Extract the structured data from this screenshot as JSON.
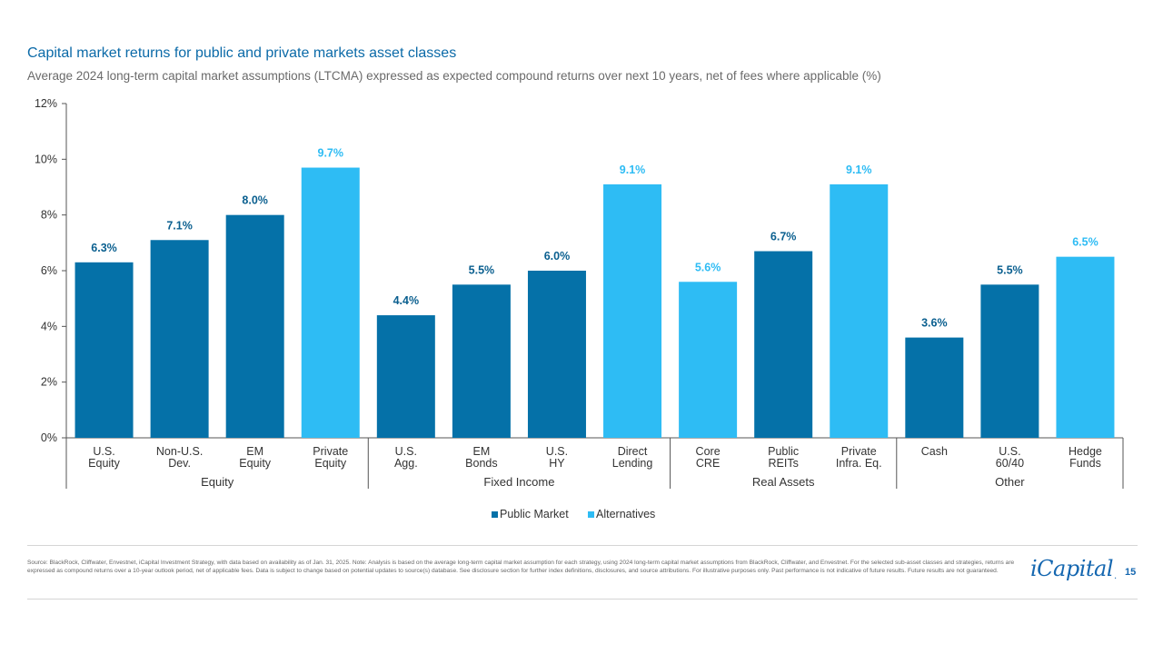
{
  "header": {
    "title": "Capital market returns for public and private markets asset classes",
    "subtitle": "Average 2024 long-term capital market assumptions (LTCMA) expressed as expected compound returns over next 10 years, net of fees where applicable (%)"
  },
  "chart_data": {
    "type": "bar",
    "ylim": [
      0,
      12
    ],
    "yticks": [
      0,
      2,
      4,
      6,
      8,
      10,
      12
    ],
    "ytick_labels": [
      "0%",
      "2%",
      "4%",
      "6%",
      "8%",
      "10%",
      "12%"
    ],
    "categories": [
      {
        "line1": "U.S.",
        "line2": "Equity",
        "group": "Equity",
        "value": 6.3,
        "label": "6.3%",
        "series": "Public Market"
      },
      {
        "line1": "Non-U.S.",
        "line2": "Dev.",
        "group": "Equity",
        "value": 7.1,
        "label": "7.1%",
        "series": "Public Market"
      },
      {
        "line1": "EM",
        "line2": "Equity",
        "group": "Equity",
        "value": 8.0,
        "label": "8.0%",
        "series": "Public Market"
      },
      {
        "line1": "Private",
        "line2": "Equity",
        "group": "Equity",
        "value": 9.7,
        "label": "9.7%",
        "series": "Alternatives"
      },
      {
        "line1": "U.S.",
        "line2": "Agg.",
        "group": "Fixed Income",
        "value": 4.4,
        "label": "4.4%",
        "series": "Public Market"
      },
      {
        "line1": "EM",
        "line2": "Bonds",
        "group": "Fixed Income",
        "value": 5.5,
        "label": "5.5%",
        "series": "Public Market"
      },
      {
        "line1": "U.S.",
        "line2": "HY",
        "group": "Fixed Income",
        "value": 6.0,
        "label": "6.0%",
        "series": "Public Market"
      },
      {
        "line1": "Direct",
        "line2": "Lending",
        "group": "Fixed Income",
        "value": 9.1,
        "label": "9.1%",
        "series": "Alternatives"
      },
      {
        "line1": "Core",
        "line2": "CRE",
        "group": "Real Assets",
        "value": 5.6,
        "label": "5.6%",
        "series": "Alternatives"
      },
      {
        "line1": "Public",
        "line2": "REITs",
        "group": "Real Assets",
        "value": 6.7,
        "label": "6.7%",
        "series": "Public Market"
      },
      {
        "line1": "Private",
        "line2": "Infra. Eq.",
        "group": "Real Assets",
        "value": 9.1,
        "label": "9.1%",
        "series": "Alternatives"
      },
      {
        "line1": "Cash",
        "line2": "",
        "group": "Other",
        "value": 3.6,
        "label": "3.6%",
        "series": "Public Market"
      },
      {
        "line1": "U.S.",
        "line2": "60/40",
        "group": "Other",
        "value": 5.5,
        "label": "5.5%",
        "series": "Public Market"
      },
      {
        "line1": "Hedge",
        "line2": "Funds",
        "group": "Other",
        "value": 6.5,
        "label": "6.5%",
        "series": "Alternatives"
      }
    ],
    "groups": [
      "Equity",
      "Fixed Income",
      "Real Assets",
      "Other"
    ],
    "legend": [
      {
        "name": "Public Market",
        "color": "#0571a8"
      },
      {
        "name": "Alternatives",
        "color": "#2ebcf4"
      }
    ],
    "colors": {
      "Public Market": "#0571a8",
      "Alternatives": "#2ebcf4",
      "label_public": "#0a5f8f",
      "label_alt": "#2ebcf4"
    }
  },
  "footer": {
    "source": "Source: BlackRock, Cliffwater, Envestnet, iCapital Investment Strategy, with data based on availability as of Jan. 31, 2025. Note: Analysis is based on the average long-term capital market assumption for each strategy, using 2024 long-term capital market assumptions from BlackRock, Cliffwater, and Envestnet. For the selected sub-asset classes and strategies, returns are expressed as compound returns over a 10-year outlook period, net of applicable fees. Data is subject to change based on potential updates to source(s) database. See disclosure section for further index definitions, disclosures, and source attributions. For illustrative purposes only. Past performance is not indicative of future results. Future results are not guaranteed.",
    "logo_text": "iCapital",
    "page_number": "15"
  }
}
